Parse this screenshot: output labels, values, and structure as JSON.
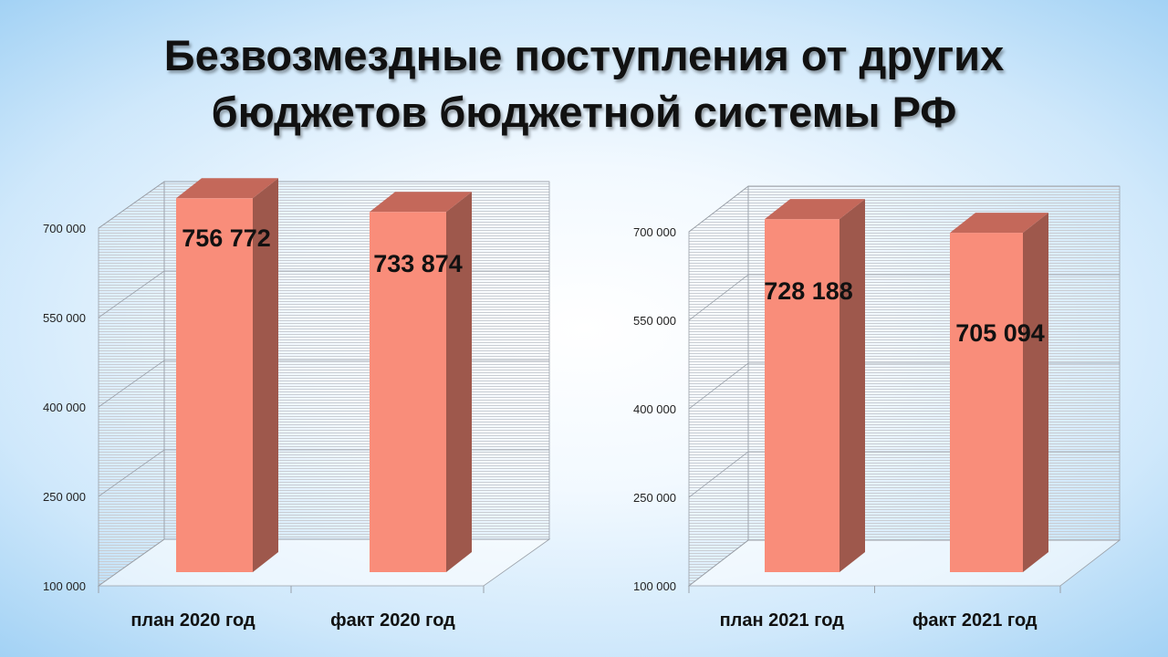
{
  "title": {
    "line1": "Безвозмездные поступления от других",
    "line2": "бюджетов бюджетной системы РФ"
  },
  "colors": {
    "bar_front": "#f98d7a",
    "bar_side": "#9e584c",
    "bar_top": "#c4685a",
    "grid_hatch": "#c9cdd3",
    "axis": "#9aa0a8"
  },
  "chart_data": [
    {
      "type": "bar",
      "categories": [
        "план 2020 год",
        "факт 2020 год"
      ],
      "values": [
        756772,
        733874
      ],
      "data_labels": [
        "756 772",
        "733 874"
      ],
      "y_ticks": [
        "100 000",
        "250 000",
        "400 000",
        "550 000",
        "700 000"
      ],
      "ylim": [
        100000,
        700000
      ],
      "grid": true,
      "legend": "none"
    },
    {
      "type": "bar",
      "categories": [
        "план 2021 год",
        "факт 2021 год"
      ],
      "values": [
        728188,
        705094
      ],
      "data_labels": [
        "728 188",
        "705 094"
      ],
      "y_ticks": [
        "100 000",
        "250 000",
        "400 000",
        "550 000",
        "700 000"
      ],
      "ylim": [
        100000,
        700000
      ],
      "grid": true,
      "legend": "none"
    }
  ]
}
